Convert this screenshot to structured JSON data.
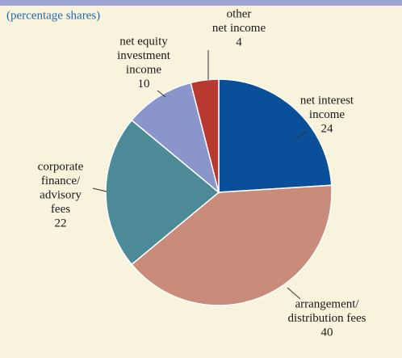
{
  "chart_data": {
    "type": "pie",
    "subtitle": "(percentage shares)",
    "categories": [
      [
        "net interest",
        "income"
      ],
      [
        "arrangement/",
        "distribution fees"
      ],
      [
        "corporate",
        "finance/",
        "advisory",
        "fees"
      ],
      [
        "net equity",
        "investment",
        "income"
      ],
      [
        "other",
        "net income"
      ]
    ],
    "values": [
      24,
      40,
      22,
      10,
      4
    ],
    "colors": [
      "#0a4f9a",
      "#c98c7b",
      "#4b8a96",
      "#8a96cb",
      "#b8392f"
    ]
  }
}
